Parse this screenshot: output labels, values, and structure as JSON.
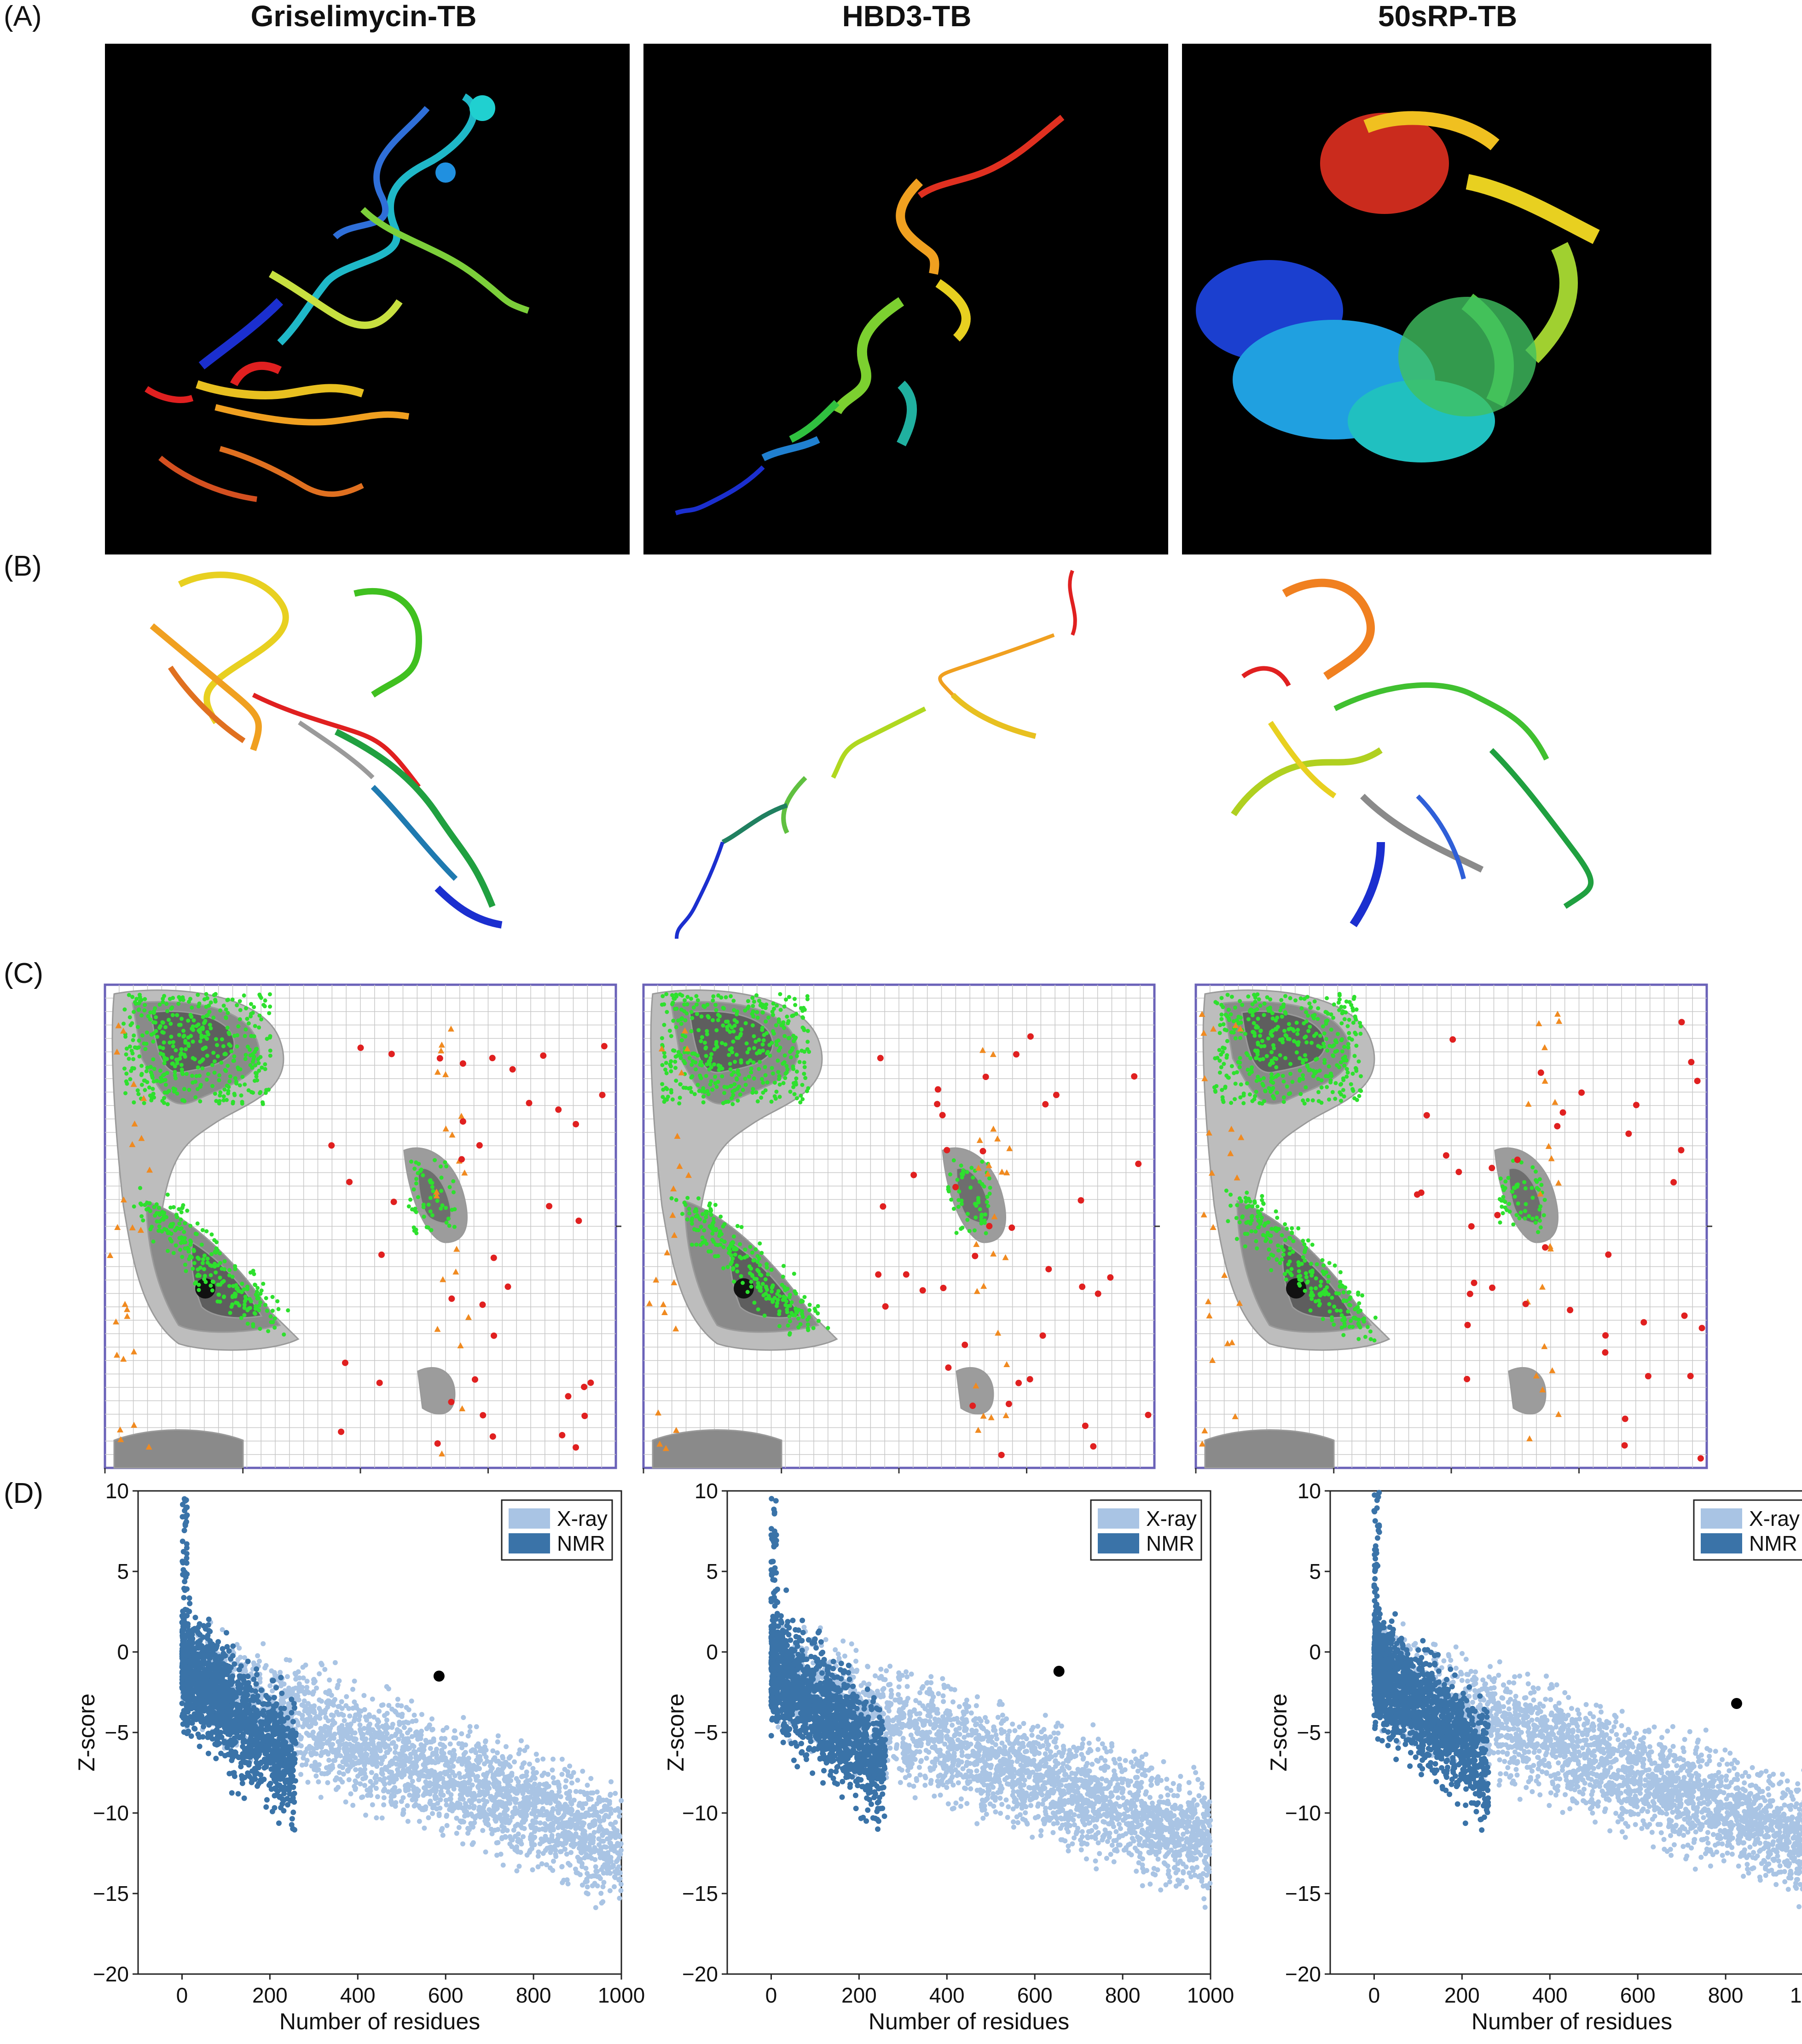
{
  "panels": {
    "a": "(A)",
    "b": "(B)",
    "c": "(C)",
    "d": "(D)"
  },
  "columns": [
    {
      "title": "Griselimycin-TB",
      "black_spot_z": -1.5
    },
    {
      "title": "HBD3-TB",
      "black_spot_z": -1.2
    },
    {
      "title": "50sRP-TB",
      "black_spot_z": -3.2
    }
  ],
  "zplot": {
    "ylabel": "Z-score",
    "xlabel": "Number of residues",
    "xticks": [
      "0",
      "200",
      "400",
      "600",
      "800",
      "1000"
    ],
    "yticks": [
      "10",
      "5",
      "0",
      "−5",
      "−10",
      "−15",
      "−20"
    ],
    "legend": [
      "X-ray",
      "NMR"
    ],
    "colors": {
      "xray": "#a9c4e4",
      "nmr": "#3a73a8"
    }
  },
  "chart_data": [
    {
      "type": "scatter",
      "xlabel": "Number of residues",
      "ylabel": "Z-score",
      "xlim": [
        -100,
        1000
      ],
      "ylim": [
        -20,
        10
      ],
      "series": [
        {
          "name": "X-ray"
        },
        {
          "name": "NMR"
        }
      ],
      "highlight": {
        "x": 585,
        "y": -1.5
      }
    },
    {
      "type": "scatter",
      "xlabel": "Number of residues",
      "ylabel": "Z-score",
      "xlim": [
        -100,
        1000
      ],
      "ylim": [
        -20,
        10
      ],
      "series": [
        {
          "name": "X-ray"
        },
        {
          "name": "NMR"
        }
      ],
      "highlight": {
        "x": 655,
        "y": -1.2
      }
    },
    {
      "type": "scatter",
      "xlabel": "Number of residues",
      "ylabel": "Z-score",
      "xlim": [
        -100,
        1000
      ],
      "ylim": [
        -20,
        10
      ],
      "series": [
        {
          "name": "X-ray"
        },
        {
          "name": "NMR"
        }
      ],
      "highlight": {
        "x": 825,
        "y": -3.2
      }
    }
  ]
}
